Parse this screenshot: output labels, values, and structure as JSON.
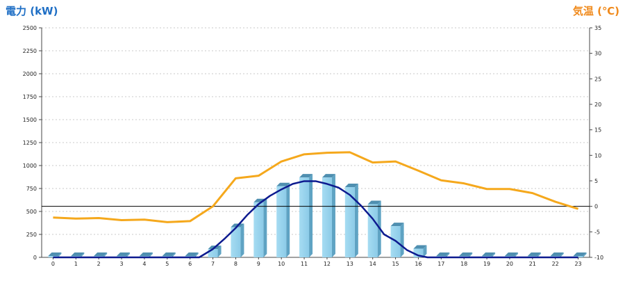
{
  "chart_data": {
    "type": "bar",
    "left_axis_title": "電力 (kW)",
    "right_axis_title": "気温 (℃)",
    "categories": [
      "0",
      "1",
      "2",
      "3",
      "4",
      "5",
      "6",
      "7",
      "8",
      "9",
      "10",
      "11",
      "12",
      "13",
      "14",
      "15",
      "16",
      "17",
      "18",
      "19",
      "20",
      "21",
      "22",
      "23"
    ],
    "left_ylim": [
      0,
      2500
    ],
    "left_ticks": [
      0,
      250,
      500,
      750,
      1000,
      1250,
      1500,
      1750,
      2000,
      2250,
      2500
    ],
    "right_ylim": [
      -10,
      35
    ],
    "right_ticks": [
      -10,
      -5,
      0,
      5,
      10,
      15,
      20,
      25,
      30,
      35
    ],
    "grid": true,
    "bar_series": {
      "axis": "left",
      "color": "#8ccbe8",
      "values": [
        0,
        0,
        0,
        0,
        0,
        0,
        0,
        90,
        330,
        600,
        775,
        870,
        870,
        765,
        580,
        340,
        95,
        0,
        0,
        0,
        0,
        0,
        0,
        0
      ]
    },
    "power_line": {
      "axis": "left",
      "color": "#0d1a8f",
      "x": [
        0,
        6.4,
        7,
        7.5,
        8,
        8.5,
        9,
        9.5,
        10,
        10.5,
        11,
        11.5,
        12,
        12.5,
        13,
        13.5,
        14,
        14.5,
        15,
        15.5,
        16,
        16.4,
        23
      ],
      "y": [
        0,
        0,
        90,
        200,
        320,
        460,
        580,
        670,
        740,
        800,
        830,
        830,
        800,
        760,
        680,
        560,
        420,
        250,
        180,
        80,
        20,
        0,
        0
      ]
    },
    "temp_line": {
      "axis": "right",
      "color": "#f5a81c",
      "values": [
        -2.2,
        -2.4,
        -2.3,
        -2.7,
        -2.6,
        -3.1,
        -2.9,
        0,
        5.5,
        6,
        8.8,
        10.2,
        10.5,
        10.6,
        8.6,
        8.8,
        7,
        5.1,
        4.5,
        3.4,
        3.4,
        2.6,
        0.9,
        -0.5
      ]
    },
    "reference_line": {
      "axis": "right",
      "value": 0,
      "color": "#000000"
    }
  }
}
